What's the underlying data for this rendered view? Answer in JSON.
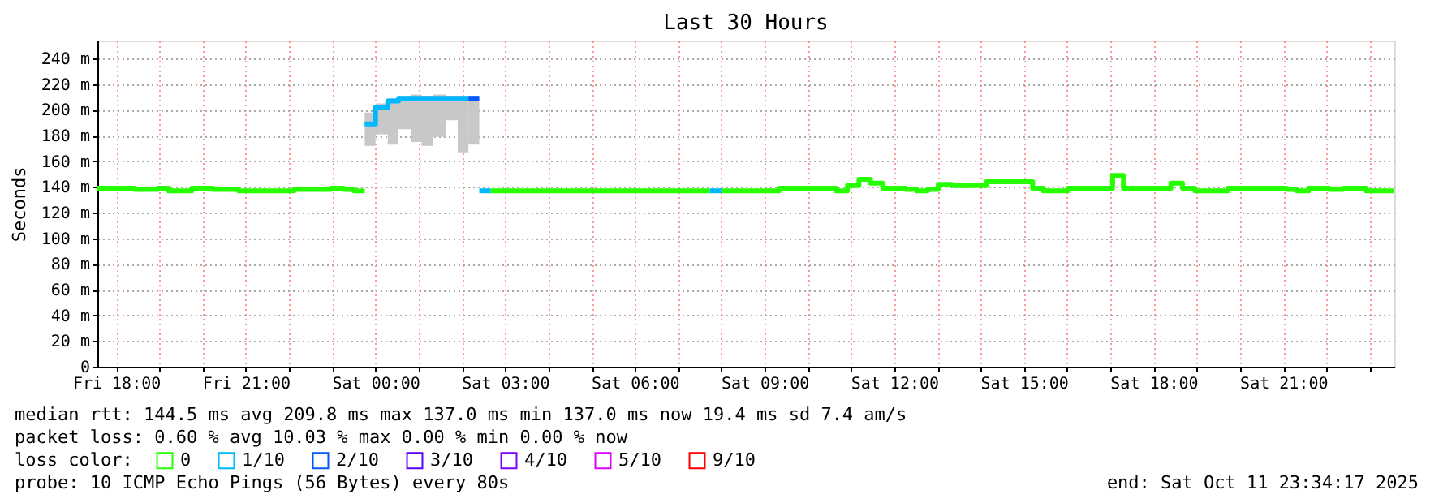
{
  "chart_data": {
    "type": "step",
    "title": "Last 30 Hours",
    "ylabel": "Seconds",
    "legend_title": "loss color:",
    "legend": "bottom",
    "grid": true,
    "marker": "none",
    "line_style": "solid",
    "xlim": [
      "2025-10-10T17:34",
      "2025-10-11T23:34"
    ],
    "xticks": [
      {
        "value": "2025-10-10T18:00",
        "label": "Fri 18:00"
      },
      {
        "value": "2025-10-10T19:00",
        "label": null
      },
      {
        "value": "2025-10-10T20:00",
        "label": null
      },
      {
        "value": "2025-10-10T21:00",
        "label": "Fri 21:00"
      },
      {
        "value": "2025-10-10T22:00",
        "label": null
      },
      {
        "value": "2025-10-10T23:00",
        "label": null
      },
      {
        "value": "2025-10-11T00:00",
        "label": "Sat 00:00"
      },
      {
        "value": "2025-10-11T01:00",
        "label": null
      },
      {
        "value": "2025-10-11T02:00",
        "label": null
      },
      {
        "value": "2025-10-11T03:00",
        "label": "Sat 03:00"
      },
      {
        "value": "2025-10-11T04:00",
        "label": null
      },
      {
        "value": "2025-10-11T05:00",
        "label": null
      },
      {
        "value": "2025-10-11T06:00",
        "label": "Sat 06:00"
      },
      {
        "value": "2025-10-11T07:00",
        "label": null
      },
      {
        "value": "2025-10-11T08:00",
        "label": null
      },
      {
        "value": "2025-10-11T09:00",
        "label": "Sat 09:00"
      },
      {
        "value": "2025-10-11T10:00",
        "label": null
      },
      {
        "value": "2025-10-11T11:00",
        "label": null
      },
      {
        "value": "2025-10-11T12:00",
        "label": "Sat 12:00"
      },
      {
        "value": "2025-10-11T13:00",
        "label": null
      },
      {
        "value": "2025-10-11T14:00",
        "label": null
      },
      {
        "value": "2025-10-11T15:00",
        "label": "Sat 15:00"
      },
      {
        "value": "2025-10-11T16:00",
        "label": null
      },
      {
        "value": "2025-10-11T17:00",
        "label": null
      },
      {
        "value": "2025-10-11T18:00",
        "label": "Sat 18:00"
      },
      {
        "value": "2025-10-11T19:00",
        "label": null
      },
      {
        "value": "2025-10-11T20:00",
        "label": null
      },
      {
        "value": "2025-10-11T21:00",
        "label": "Sat 21:00"
      },
      {
        "value": "2025-10-11T22:00",
        "label": null
      },
      {
        "value": "2025-10-11T23:00",
        "label": null
      }
    ],
    "ylim": [
      0,
      254
    ],
    "yticks": [
      0,
      {
        "value": 20,
        "label": "20 m"
      },
      {
        "value": 40,
        "label": "40 m"
      },
      {
        "value": 60,
        "label": "60 m"
      },
      {
        "value": 80,
        "label": "80 m"
      },
      {
        "value": 100,
        "label": "100 m"
      },
      {
        "value": 120,
        "label": "120 m"
      },
      {
        "value": 140,
        "label": "140 m"
      },
      {
        "value": 160,
        "label": "160 m"
      },
      {
        "value": 180,
        "label": "180 m"
      },
      {
        "value": 200,
        "label": "200 m"
      },
      {
        "value": 220,
        "label": "220 m"
      },
      {
        "value": 240,
        "label": "240 m"
      }
    ],
    "series": [
      {
        "name": "0",
        "color": "#26ff00",
        "x": [
          "2025-10-10T17:34",
          "2025-10-10T18:25",
          "2025-10-10T18:58",
          "2025-10-10T19:13",
          "2025-10-10T19:45",
          "2025-10-10T20:14",
          "2025-10-10T20:50",
          "2025-10-10T22:07",
          "2025-10-10T22:58",
          "2025-10-10T23:16",
          "2025-10-10T23:30",
          "2025-10-10T23:45"
        ],
        "values": [
          139,
          138,
          139,
          137,
          139,
          138,
          137,
          138,
          139,
          138,
          137,
          137
        ]
      },
      {
        "name": "1/10",
        "color": "#00b8ff",
        "x": [
          "2025-10-10T23:45",
          "2025-10-11T00:00",
          "2025-10-11T00:17",
          "2025-10-11T00:32",
          "2025-10-11T00:49",
          "2025-10-11T01:04",
          "2025-10-11T01:20",
          "2025-10-11T01:38",
          "2025-10-11T01:54",
          "2025-10-11T02:09"
        ],
        "values": [
          189,
          202,
          207,
          209,
          209,
          209,
          209,
          209,
          209,
          209
        ],
        "lower": [
          172,
          181,
          173,
          185,
          175,
          172,
          179,
          192,
          167,
          173
        ],
        "upper": [
          198,
          205,
          209,
          211,
          212,
          211,
          212,
          211,
          211,
          211
        ]
      },
      {
        "name": "2/10",
        "color": "#0059ff",
        "x": [
          "2025-10-11T02:09",
          "2025-10-11T02:24"
        ],
        "values": [
          209,
          209
        ],
        "lower": [
          173,
          173
        ],
        "upper": [
          211,
          211
        ]
      },
      {
        "color": "#00b8ff",
        "x": [
          "2025-10-11T02:24",
          "2025-10-11T02:40"
        ],
        "values": [
          137,
          137
        ]
      },
      {
        "color": "#26ff00",
        "x": [
          "2025-10-11T02:40",
          "2025-10-11T07:44"
        ],
        "values": [
          137,
          137
        ]
      },
      {
        "color": "#00b8ff",
        "x": [
          "2025-10-11T07:44",
          "2025-10-11T08:00"
        ],
        "values": [
          137,
          137
        ]
      },
      {
        "color": "#26ff00",
        "x": [
          "2025-10-11T08:00",
          "2025-10-11T09:20",
          "2025-10-11T10:39",
          "2025-10-11T10:55",
          "2025-10-11T11:11",
          "2025-10-11T11:27",
          "2025-10-11T11:44",
          "2025-10-11T12:16",
          "2025-10-11T12:31",
          "2025-10-11T12:46",
          "2025-10-11T13:01",
          "2025-10-11T13:20",
          "2025-10-11T14:08",
          "2025-10-11T15:12",
          "2025-10-11T15:27",
          "2025-10-11T16:01",
          "2025-10-11T17:03",
          "2025-10-11T17:18",
          "2025-10-11T18:24",
          "2025-10-11T18:40",
          "2025-10-11T18:57",
          "2025-10-11T19:43",
          "2025-10-11T21:04",
          "2025-10-11T21:19",
          "2025-10-11T21:35",
          "2025-10-11T22:04",
          "2025-10-11T22:23",
          "2025-10-11T22:55",
          "2025-10-11T23:34"
        ],
        "values": [
          137,
          139,
          137,
          141,
          146,
          143,
          139,
          138,
          137,
          138,
          142,
          141,
          144,
          139,
          137,
          139,
          149,
          139,
          143,
          139,
          137,
          139,
          138,
          137,
          139,
          138,
          139,
          137,
          137
        ]
      },
      {
        "name": "3/10",
        "color": "#5e00ff"
      },
      {
        "name": "4/10",
        "color": "#7e00ff"
      },
      {
        "name": "5/10",
        "color": "#dd00ff"
      },
      {
        "name": "9/10",
        "color": "#ff0000"
      }
    ],
    "annotations": [
      "median rtt:  144.5 ms avg  209.8 ms max  137.0 ms min  137.0 ms now  19.4 ms sd  7.4   am/s",
      "packet loss: 0.60 % avg  10.03 % max  0.00 % min  0.00 % now",
      "probe:       10 ICMP Echo Pings (56 Bytes) every 80s",
      "end: Sat Oct 11 23:34:17 2025"
    ]
  }
}
